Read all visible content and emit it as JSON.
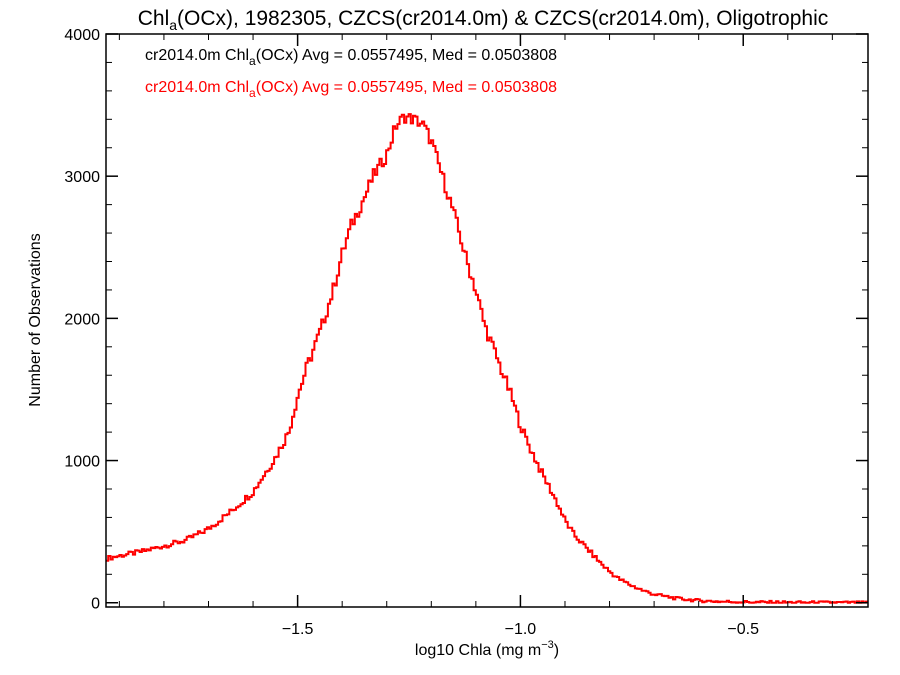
{
  "chart_data": {
    "type": "histogram-step",
    "title": {
      "pre": "Chl",
      "sub": "a",
      "post": "(OCx), 1982305, CZCS(cr2014.0m) & CZCS(cr2014.0m), Oligotrophic"
    },
    "xlabel": {
      "pre": "log10 Chla (mg m",
      "sup": "−3",
      "post": ")"
    },
    "ylabel": "Number of Observations",
    "xlim": [
      -1.93,
      -0.22
    ],
    "ylim": [
      -30,
      4000
    ],
    "xticks": [
      {
        "value": -1.5,
        "label": "−1.5"
      },
      {
        "value": -1.0,
        "label": "−1.0"
      },
      {
        "value": -0.5,
        "label": "−0.5"
      }
    ],
    "yticks": [
      {
        "value": 0,
        "label": "0"
      },
      {
        "value": 1000,
        "label": "1000"
      },
      {
        "value": 2000,
        "label": "2000"
      },
      {
        "value": 3000,
        "label": "3000"
      },
      {
        "value": 4000,
        "label": "4000"
      }
    ],
    "legend_position": "top-left",
    "legend": [
      {
        "color": "#000000",
        "pre": "cr2014.0m Chl",
        "sub": "a",
        "post": "(OCx) Avg = 0.0557495, Med = 0.0503808"
      },
      {
        "color": "#ff0000",
        "pre": "cr2014.0m Chl",
        "sub": "a",
        "post": "(OCx) Avg = 0.0557495, Med = 0.0503808"
      }
    ],
    "series": [
      {
        "color": "#ff0000",
        "x": [
          -1.93,
          -1.9,
          -1.85,
          -1.8,
          -1.75,
          -1.7,
          -1.65,
          -1.6,
          -1.55,
          -1.52,
          -1.5,
          -1.48,
          -1.45,
          -1.42,
          -1.4,
          -1.38,
          -1.35,
          -1.33,
          -1.3,
          -1.28,
          -1.26,
          -1.24,
          -1.22,
          -1.2,
          -1.18,
          -1.15,
          -1.12,
          -1.1,
          -1.08,
          -1.05,
          -1.02,
          -1.0,
          -0.98,
          -0.95,
          -0.92,
          -0.9,
          -0.88,
          -0.85,
          -0.82,
          -0.8,
          -0.78,
          -0.75,
          -0.72,
          -0.7,
          -0.65,
          -0.6,
          -0.55,
          -0.5,
          -0.45,
          -0.4,
          -0.3,
          -0.22
        ],
        "y": [
          310,
          330,
          360,
          400,
          440,
          520,
          640,
          780,
          1020,
          1200,
          1450,
          1650,
          1900,
          2200,
          2450,
          2650,
          2850,
          3000,
          3150,
          3350,
          3420,
          3400,
          3370,
          3250,
          3050,
          2750,
          2400,
          2200,
          1950,
          1700,
          1450,
          1250,
          1100,
          900,
          720,
          580,
          480,
          380,
          280,
          220,
          170,
          120,
          80,
          60,
          30,
          15,
          8,
          5,
          3,
          2,
          1,
          0
        ]
      }
    ]
  }
}
